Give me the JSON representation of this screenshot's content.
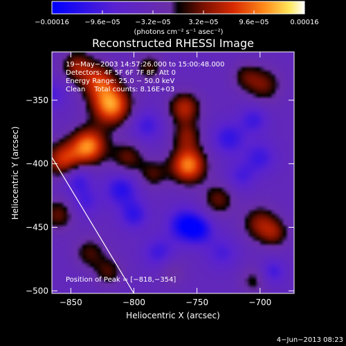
{
  "chart_data": {
    "type": "heatmap",
    "title": "Reconstructed RHESSI Image",
    "xlabel": "Heliocentric X (arcsec)",
    "ylabel": "Heliocentric Y (arcsec)",
    "xlim": [
      -865,
      -673
    ],
    "ylim": [
      -502,
      -312
    ],
    "x_ticks": [
      -850,
      -800,
      -750,
      -700
    ],
    "x_tick_labels": [
      "−850",
      "−800",
      "−750",
      "−700"
    ],
    "y_ticks": [
      -350,
      -400,
      -450,
      -500
    ],
    "y_tick_labels": [
      "−350",
      "−400",
      "−450",
      "−500"
    ],
    "colorbar": {
      "ticks": [
        -0.00016,
        -9.6e-05,
        -3.2e-05,
        3.2e-05,
        9.6e-05,
        0.00016
      ],
      "tick_labels": [
        "−0.00016",
        "−9.6e−05",
        "−3.2e−05",
        "3.2e−05",
        "9.6e−05",
        "0.00016"
      ],
      "unit_label": "(photons cm⁻² s⁻¹ asec⁻²)",
      "range": [
        -0.00016,
        0.00016
      ]
    },
    "annotations": [
      "19−May−2003 14:57:26.000 to 15:00:48.000",
      "Detectors: 4F 5F 6F 7F 8F, Att 0",
      "Energy Range: 25.0 − 50.0 keV",
      "Clean    Total counts: 8.16E+03"
    ],
    "peak_label": "Position of Peak = [−818,−354]",
    "limb_line": [
      [
        -865,
        -395
      ],
      [
        -800,
        -502
      ]
    ],
    "sources": [
      {
        "x": -818,
        "y": -354,
        "amp": 0.000155,
        "sigma": 11
      },
      {
        "x": -836,
        "y": -386,
        "amp": 0.00015,
        "sigma": 10
      },
      {
        "x": -856,
        "y": -397,
        "amp": 0.00011,
        "sigma": 10
      },
      {
        "x": -828,
        "y": -335,
        "amp": 0.0001,
        "sigma": 10
      },
      {
        "x": -845,
        "y": -323,
        "amp": 8e-05,
        "sigma": 9
      },
      {
        "x": -757,
        "y": -401,
        "amp": 0.00015,
        "sigma": 10
      },
      {
        "x": -760,
        "y": -356,
        "amp": 0.0001,
        "sigma": 9
      },
      {
        "x": -758,
        "y": -378,
        "amp": 7e-05,
        "sigma": 8
      },
      {
        "x": -697,
        "y": -338,
        "amp": 7e-05,
        "sigma": 10
      },
      {
        "x": -712,
        "y": -331,
        "amp": 5e-05,
        "sigma": 8
      },
      {
        "x": -788,
        "y": -324,
        "amp": 6e-05,
        "sigma": 8
      },
      {
        "x": -805,
        "y": -395,
        "amp": 7e-05,
        "sigma": 9
      },
      {
        "x": -785,
        "y": -408,
        "amp": 6e-05,
        "sigma": 8
      },
      {
        "x": -733,
        "y": -428,
        "amp": 7e-05,
        "sigma": 9
      },
      {
        "x": -700,
        "y": -447,
        "amp": 8e-05,
        "sigma": 10
      },
      {
        "x": -688,
        "y": -455,
        "amp": 6e-05,
        "sigma": 8
      },
      {
        "x": -860,
        "y": -440,
        "amp": 7e-05,
        "sigma": 9
      },
      {
        "x": -835,
        "y": -470,
        "amp": 6e-05,
        "sigma": 9
      },
      {
        "x": -820,
        "y": -485,
        "amp": 6e-05,
        "sigma": 8
      },
      {
        "x": -770,
        "y": -485,
        "amp": 4e-05,
        "sigma": 8
      },
      {
        "x": -705,
        "y": -492,
        "amp": 5e-05,
        "sigma": 8
      },
      {
        "x": -760,
        "y": -448,
        "amp": -0.0001,
        "sigma": 9
      },
      {
        "x": -748,
        "y": -452,
        "amp": -8e-05,
        "sigma": 8
      },
      {
        "x": -810,
        "y": -420,
        "amp": -8e-05,
        "sigma": 9
      },
      {
        "x": -800,
        "y": -440,
        "amp": -7e-05,
        "sigma": 8
      },
      {
        "x": -845,
        "y": -412,
        "amp": -7e-05,
        "sigma": 8
      },
      {
        "x": -790,
        "y": -370,
        "amp": -6e-05,
        "sigma": 9
      },
      {
        "x": -725,
        "y": -380,
        "amp": -7e-05,
        "sigma": 9
      },
      {
        "x": -700,
        "y": -395,
        "amp": -6e-05,
        "sigma": 9
      },
      {
        "x": -715,
        "y": -410,
        "amp": -5e-05,
        "sigma": 8
      },
      {
        "x": -838,
        "y": -430,
        "amp": -5e-05,
        "sigma": 8
      },
      {
        "x": -780,
        "y": -470,
        "amp": -6e-05,
        "sigma": 9
      },
      {
        "x": -730,
        "y": -470,
        "amp": -5e-05,
        "sigma": 9
      },
      {
        "x": -690,
        "y": -485,
        "amp": -6e-05,
        "sigma": 7
      },
      {
        "x": -705,
        "y": -365,
        "amp": -6e-05,
        "sigma": 8
      },
      {
        "x": -865,
        "y": -345,
        "amp": -5e-05,
        "sigma": 8
      }
    ],
    "grid": false
  },
  "timestamp": "4−Jun−2013 08:23",
  "colors": {
    "background": "#000000",
    "foreground": "#ffffff",
    "limb_line": "#ffffff"
  }
}
